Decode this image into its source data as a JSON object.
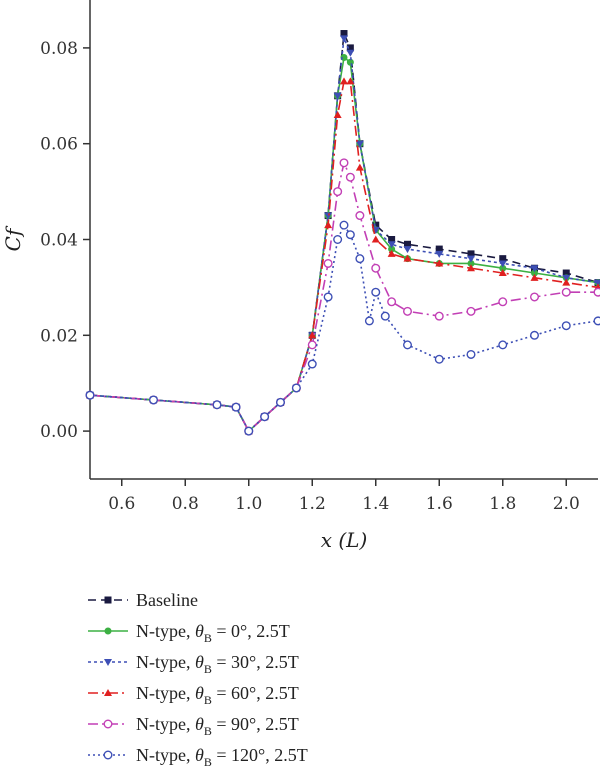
{
  "chart_data": {
    "type": "line",
    "title": "",
    "xlabel": "x (L)",
    "ylabel": "Cf",
    "xlim": [
      0.5,
      2.1
    ],
    "ylim": [
      -0.01,
      0.09
    ],
    "xticks": [
      0.6,
      0.8,
      1.0,
      1.2,
      1.4,
      1.6,
      1.8,
      2.0
    ],
    "xtick_labels": [
      "0.6",
      "0.8",
      "1.0",
      "1.2",
      "1.4",
      "1.6",
      "1.8",
      "2.0"
    ],
    "yticks": [
      0.0,
      0.02,
      0.04,
      0.06,
      0.08
    ],
    "ytick_labels": [
      "0.00",
      "0.02",
      "0.04",
      "0.06",
      "0.08"
    ],
    "grid": false,
    "legend_position": "bottom",
    "series": [
      {
        "name": "Baseline",
        "legend": {
          "prefix": "",
          "theta_sub": "",
          "suffix": "Baseline"
        },
        "color": "#1a1a40",
        "dash": "8,5",
        "marker": "square",
        "x": [
          0.5,
          0.7,
          0.9,
          0.96,
          1.0,
          1.05,
          1.1,
          1.15,
          1.2,
          1.25,
          1.28,
          1.3,
          1.32,
          1.35,
          1.4,
          1.45,
          1.5,
          1.6,
          1.7,
          1.8,
          1.9,
          2.0,
          2.1
        ],
        "y": [
          0.0075,
          0.0065,
          0.0055,
          0.005,
          0.0,
          0.003,
          0.006,
          0.009,
          0.02,
          0.045,
          0.07,
          0.083,
          0.08,
          0.06,
          0.043,
          0.04,
          0.039,
          0.038,
          0.037,
          0.036,
          0.034,
          0.033,
          0.031
        ]
      },
      {
        "name": "N-type, θB = 0°, 2.5T",
        "legend": {
          "prefix": "N-type, ",
          "theta_sub": "B",
          "suffix": " = 0°, 2.5T"
        },
        "color": "#3cb043",
        "dash": "",
        "marker": "circle-filled",
        "x": [
          0.5,
          0.7,
          0.9,
          0.96,
          1.0,
          1.05,
          1.1,
          1.15,
          1.2,
          1.25,
          1.28,
          1.3,
          1.32,
          1.35,
          1.4,
          1.45,
          1.5,
          1.6,
          1.7,
          1.8,
          1.9,
          2.0,
          2.1
        ],
        "y": [
          0.0075,
          0.0065,
          0.0055,
          0.005,
          0.0,
          0.003,
          0.006,
          0.009,
          0.02,
          0.045,
          0.07,
          0.078,
          0.077,
          0.06,
          0.042,
          0.038,
          0.036,
          0.035,
          0.035,
          0.034,
          0.033,
          0.032,
          0.031
        ]
      },
      {
        "name": "N-type, θB = 30°, 2.5T",
        "legend": {
          "prefix": "N-type, ",
          "theta_sub": "B",
          "suffix": " = 30°, 2.5T"
        },
        "color": "#3d4fb5",
        "dash": "3,3",
        "marker": "triangle-down",
        "x": [
          0.5,
          0.7,
          0.9,
          0.96,
          1.0,
          1.05,
          1.1,
          1.15,
          1.2,
          1.25,
          1.28,
          1.3,
          1.32,
          1.35,
          1.4,
          1.45,
          1.5,
          1.6,
          1.7,
          1.8,
          1.9,
          2.0,
          2.1
        ],
        "y": [
          0.0075,
          0.0065,
          0.0055,
          0.005,
          0.0,
          0.003,
          0.006,
          0.009,
          0.02,
          0.045,
          0.07,
          0.082,
          0.079,
          0.06,
          0.042,
          0.039,
          0.038,
          0.037,
          0.036,
          0.035,
          0.034,
          0.032,
          0.031
        ]
      },
      {
        "name": "N-type, θB = 60°, 2.5T",
        "legend": {
          "prefix": "N-type, ",
          "theta_sub": "B",
          "suffix": " = 60°, 2.5T"
        },
        "color": "#e02020",
        "dash": "10,4,2,4",
        "marker": "triangle-up",
        "x": [
          0.5,
          0.7,
          0.9,
          0.96,
          1.0,
          1.05,
          1.1,
          1.15,
          1.2,
          1.25,
          1.28,
          1.3,
          1.32,
          1.35,
          1.4,
          1.45,
          1.5,
          1.6,
          1.7,
          1.8,
          1.9,
          2.0,
          2.1
        ],
        "y": [
          0.0075,
          0.0065,
          0.0055,
          0.005,
          0.0,
          0.003,
          0.006,
          0.009,
          0.02,
          0.043,
          0.066,
          0.073,
          0.073,
          0.055,
          0.04,
          0.037,
          0.036,
          0.035,
          0.034,
          0.033,
          0.032,
          0.031,
          0.03
        ]
      },
      {
        "name": "N-type, θB = 90°, 2.5T",
        "legend": {
          "prefix": "N-type, ",
          "theta_sub": "B",
          "suffix": " = 90°, 2.5T"
        },
        "color": "#c23fb5",
        "dash": "10,4,2,4",
        "marker": "circle-open",
        "x": [
          0.5,
          0.7,
          0.9,
          0.96,
          1.0,
          1.05,
          1.1,
          1.15,
          1.2,
          1.25,
          1.28,
          1.3,
          1.32,
          1.35,
          1.4,
          1.45,
          1.5,
          1.6,
          1.7,
          1.8,
          1.9,
          2.0,
          2.1
        ],
        "y": [
          0.0075,
          0.0065,
          0.0055,
          0.005,
          0.0,
          0.003,
          0.006,
          0.009,
          0.018,
          0.035,
          0.05,
          0.056,
          0.053,
          0.045,
          0.034,
          0.027,
          0.025,
          0.024,
          0.025,
          0.027,
          0.028,
          0.029,
          0.029
        ]
      },
      {
        "name": "N-type, θB = 120°, 2.5T",
        "legend": {
          "prefix": "N-type, ",
          "theta_sub": "B",
          "suffix": " = 120°, 2.5T"
        },
        "color": "#3d4fb5",
        "dash": "2,3",
        "marker": "circle-open",
        "x": [
          0.5,
          0.7,
          0.9,
          0.96,
          1.0,
          1.05,
          1.1,
          1.15,
          1.2,
          1.25,
          1.28,
          1.3,
          1.32,
          1.35,
          1.38,
          1.4,
          1.43,
          1.5,
          1.6,
          1.7,
          1.8,
          1.9,
          2.0,
          2.1
        ],
        "y": [
          0.0075,
          0.0065,
          0.0055,
          0.005,
          0.0,
          0.003,
          0.006,
          0.009,
          0.014,
          0.028,
          0.04,
          0.043,
          0.041,
          0.036,
          0.023,
          0.029,
          0.024,
          0.018,
          0.015,
          0.016,
          0.018,
          0.02,
          0.022,
          0.023
        ]
      }
    ]
  }
}
